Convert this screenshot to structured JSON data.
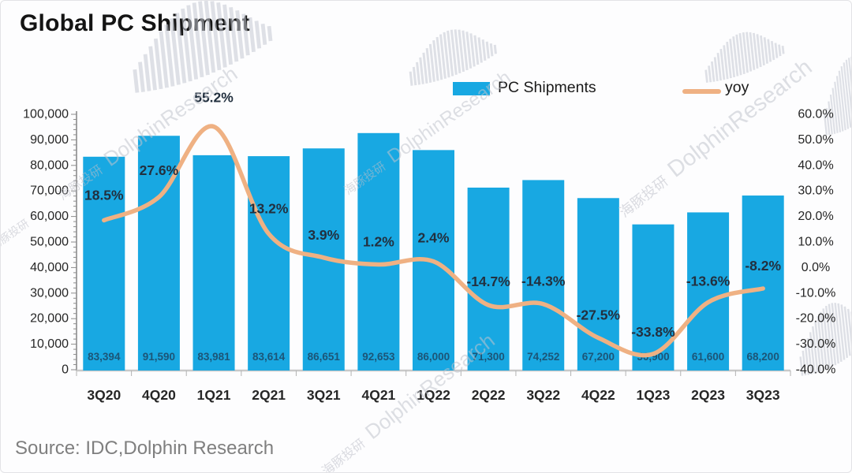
{
  "header": {
    "title": "Global PC Shipment"
  },
  "legend": {
    "bars_label": "PC Shipments",
    "line_label": "yoy"
  },
  "source": {
    "label": "Source: IDC,Dolphin Research"
  },
  "watermark": {
    "zh": "海豚投研",
    "en": "DolphinResearch"
  },
  "colors": {
    "bar": "#18a8e2",
    "line": "#efb183",
    "bar_value_label": "#1c5577",
    "yoy_label": "#22303f",
    "axis_text": "#262626",
    "axis_line": "#8c8c8c",
    "baseline": "#c9c9c9",
    "source_text": "#7f7f7f"
  },
  "chart_data": {
    "type": "bar",
    "title": "Global PC Shipment",
    "categories": [
      "3Q20",
      "4Q20",
      "1Q21",
      "2Q21",
      "3Q21",
      "4Q21",
      "1Q22",
      "2Q22",
      "3Q22",
      "4Q22",
      "1Q23",
      "2Q23",
      "3Q23"
    ],
    "series": [
      {
        "name": "PC Shipments",
        "type": "bar",
        "axis": "left",
        "values": [
          83394,
          91590,
          83981,
          83614,
          86651,
          92653,
          86000,
          71300,
          74252,
          67200,
          56900,
          61600,
          68200
        ],
        "data_labels": [
          "83,394",
          "91,590",
          "83,981",
          "83,614",
          "86,651",
          "92,653",
          "86,000",
          "71,300",
          "74,252",
          "67,200",
          "56,900",
          "61,600",
          "68,200"
        ]
      },
      {
        "name": "yoy",
        "type": "line",
        "axis": "right",
        "values": [
          18.5,
          27.6,
          55.2,
          13.2,
          3.9,
          1.2,
          2.4,
          -14.7,
          -14.3,
          -27.5,
          -33.8,
          -13.6,
          -8.2
        ],
        "data_labels": [
          "18.5%",
          "27.6%",
          "55.2%",
          "13.2%",
          "3.9%",
          "1.2%",
          "2.4%",
          "-14.7%",
          "-14.3%",
          "-27.5%",
          "-33.8%",
          "-13.6%",
          "-8.2%"
        ]
      }
    ],
    "left_axis": {
      "min": 0,
      "max": 100000,
      "step": 10000,
      "tick_labels": [
        "100,000",
        "90,000",
        "80,000",
        "70,000",
        "60,000",
        "50,000",
        "40,000",
        "30,000",
        "20,000",
        "10,000",
        "0"
      ]
    },
    "right_axis": {
      "min": -40,
      "max": 60,
      "step": 10,
      "tick_labels": [
        "60.0%",
        "50.0%",
        "40.0%",
        "30.0%",
        "20.0%",
        "10.0%",
        "0.0%",
        "-10.0%",
        "-20.0%",
        "-30.0%",
        "-40.0%"
      ]
    },
    "legend_position": "top",
    "grid": false
  }
}
